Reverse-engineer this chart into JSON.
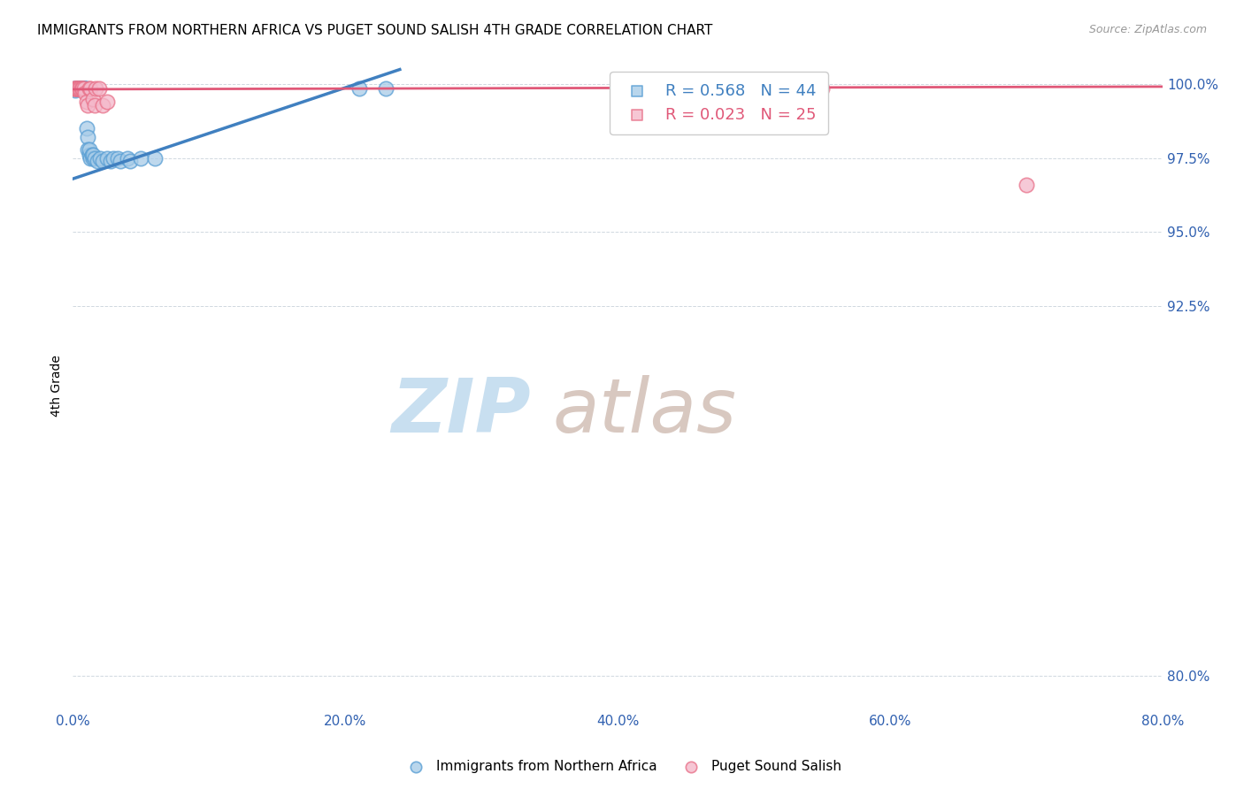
{
  "title": "IMMIGRANTS FROM NORTHERN AFRICA VS PUGET SOUND SALISH 4TH GRADE CORRELATION CHART",
  "source": "Source: ZipAtlas.com",
  "xlabel_ticks": [
    "0.0%",
    "20.0%",
    "40.0%",
    "60.0%",
    "80.0%"
  ],
  "xlabel_tick_vals": [
    0.0,
    0.2,
    0.4,
    0.6,
    0.8
  ],
  "ylabel_ticks": [
    "100.0%",
    "97.5%",
    "95.0%",
    "92.5%",
    "80.0%"
  ],
  "ylabel_tick_vals": [
    1.0,
    0.975,
    0.95,
    0.925,
    0.8
  ],
  "ylabel_label": "4th Grade",
  "xlim": [
    0.0,
    0.8
  ],
  "ylim": [
    0.788,
    1.008
  ],
  "blue_R": 0.568,
  "blue_N": 44,
  "pink_R": 0.023,
  "pink_N": 25,
  "blue_color": "#a8cce8",
  "pink_color": "#f4b8ca",
  "blue_edge_color": "#5a9fd4",
  "pink_edge_color": "#e8728a",
  "blue_line_color": "#4080c0",
  "pink_line_color": "#e05878",
  "grid_color": "#d0d8e0",
  "watermark_zip_color": "#c8dff0",
  "watermark_atlas_color": "#d8c8c0",
  "blue_scatter_x": [
    0.001,
    0.002,
    0.002,
    0.003,
    0.003,
    0.003,
    0.004,
    0.004,
    0.005,
    0.005,
    0.005,
    0.006,
    0.006,
    0.007,
    0.007,
    0.008,
    0.008,
    0.009,
    0.009,
    0.01,
    0.01,
    0.011,
    0.011,
    0.012,
    0.012,
    0.013,
    0.014,
    0.015,
    0.015,
    0.016,
    0.018,
    0.02,
    0.022,
    0.025,
    0.028,
    0.03,
    0.033,
    0.035,
    0.04,
    0.042,
    0.05,
    0.06,
    0.21,
    0.23
  ],
  "blue_scatter_y": [
    0.9985,
    0.9985,
    0.998,
    0.9985,
    0.9985,
    0.9985,
    0.9985,
    0.9985,
    0.9985,
    0.9985,
    0.9985,
    0.9985,
    0.9985,
    0.9985,
    0.9985,
    0.9985,
    0.9985,
    0.9985,
    0.9985,
    0.9985,
    0.985,
    0.982,
    0.978,
    0.976,
    0.978,
    0.975,
    0.976,
    0.975,
    0.976,
    0.975,
    0.974,
    0.975,
    0.974,
    0.975,
    0.974,
    0.975,
    0.975,
    0.974,
    0.975,
    0.974,
    0.975,
    0.975,
    0.9985,
    0.9985
  ],
  "pink_scatter_x": [
    0.001,
    0.002,
    0.002,
    0.003,
    0.003,
    0.004,
    0.005,
    0.005,
    0.006,
    0.007,
    0.007,
    0.008,
    0.009,
    0.01,
    0.011,
    0.012,
    0.013,
    0.015,
    0.016,
    0.017,
    0.019,
    0.022,
    0.025,
    0.55,
    0.7
  ],
  "pink_scatter_y": [
    0.9985,
    0.9985,
    0.9985,
    0.9985,
    0.9985,
    0.9985,
    0.9985,
    0.9985,
    0.9985,
    0.9985,
    0.9985,
    0.9985,
    0.997,
    0.994,
    0.993,
    0.9985,
    0.9985,
    0.995,
    0.993,
    0.9985,
    0.9985,
    0.993,
    0.994,
    0.9985,
    0.966
  ],
  "blue_trend_x": [
    0.0,
    0.24
  ],
  "blue_trend_y": [
    0.968,
    1.005
  ],
  "pink_trend_x": [
    0.0,
    0.8
  ],
  "pink_trend_y": [
    0.9983,
    0.9992
  ]
}
